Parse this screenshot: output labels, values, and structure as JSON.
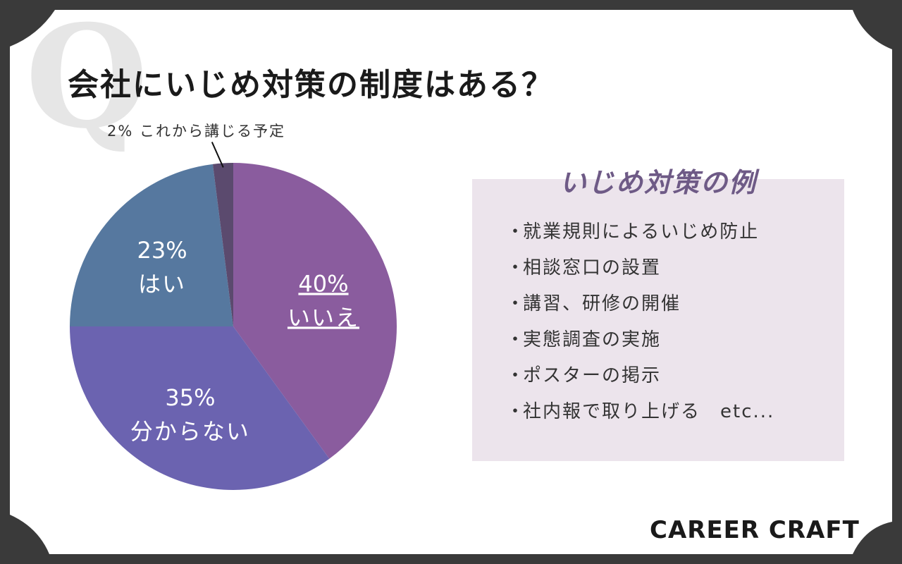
{
  "header": {
    "q_mark": "Q",
    "title": "会社にいじめ対策の制度はある？"
  },
  "chart_data": {
    "type": "pie",
    "start_angle_deg": 0,
    "direction": "clockwise",
    "slices": [
      {
        "pct_label": "40%",
        "label": "いいえ",
        "value": 40,
        "color": "#8a5c9e",
        "text_color": "#ffffff",
        "underline": true
      },
      {
        "pct_label": "35%",
        "label": "分からない",
        "value": 35,
        "color": "#6b63b0",
        "text_color": "#ffffff",
        "underline": false
      },
      {
        "pct_label": "23%",
        "label": "はい",
        "value": 23,
        "color": "#56789f",
        "text_color": "#ffffff",
        "underline": false
      },
      {
        "pct_label": "2%",
        "label": "これから講じる予定",
        "value": 2,
        "color": "#5b4a6e",
        "text_color": "#333333",
        "underline": false,
        "callout": true
      }
    ]
  },
  "examples": {
    "title": "いじめ対策の例",
    "bullet": "・",
    "items": [
      "就業規則によるいじめ防止",
      "相談窓口の設置",
      "講習、研修の開催",
      "実態調査の実施",
      "ポスターの掲示",
      "社内報で取り上げる　etc..."
    ],
    "title_color": "#6e5a86",
    "box_color": "#ece4ec"
  },
  "brand": {
    "name": "CAREER CRAFT"
  },
  "colors": {
    "frame": "#3a3a3a",
    "card": "#ffffff"
  }
}
